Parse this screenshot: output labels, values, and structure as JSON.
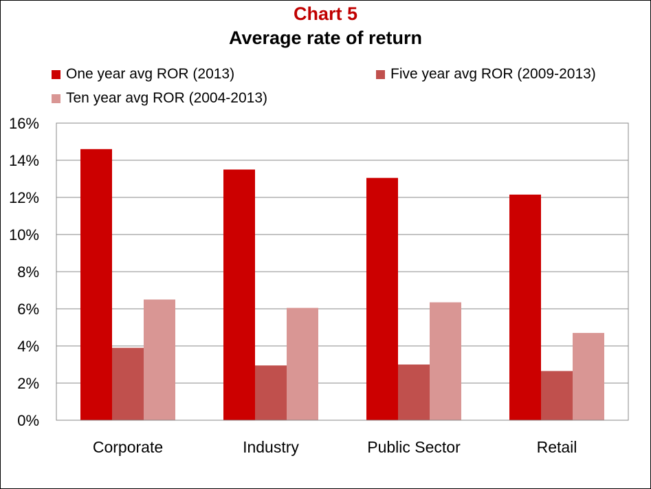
{
  "chart_data": {
    "type": "bar",
    "title": "Chart 5",
    "subtitle": "Average rate of return",
    "categories": [
      "Corporate",
      "Industry",
      "Public Sector",
      "Retail"
    ],
    "series": [
      {
        "name": "One year avg ROR (2013)",
        "color": "#cc0000",
        "values": [
          14.6,
          13.5,
          13.05,
          12.15
        ]
      },
      {
        "name": "Five year avg ROR (2009-2013)",
        "color": "#c0504d",
        "values": [
          3.9,
          2.95,
          3.0,
          2.65
        ]
      },
      {
        "name": "Ten year avg ROR (2004-2013)",
        "color": "#d99694",
        "values": [
          6.5,
          6.05,
          6.35,
          4.7
        ]
      }
    ],
    "yticks": [
      "0%",
      "2%",
      "4%",
      "6%",
      "8%",
      "10%",
      "12%",
      "14%",
      "16%"
    ],
    "ylim": [
      0,
      16
    ],
    "grid": true,
    "legend_position": "top",
    "title_color": "#c00000"
  }
}
